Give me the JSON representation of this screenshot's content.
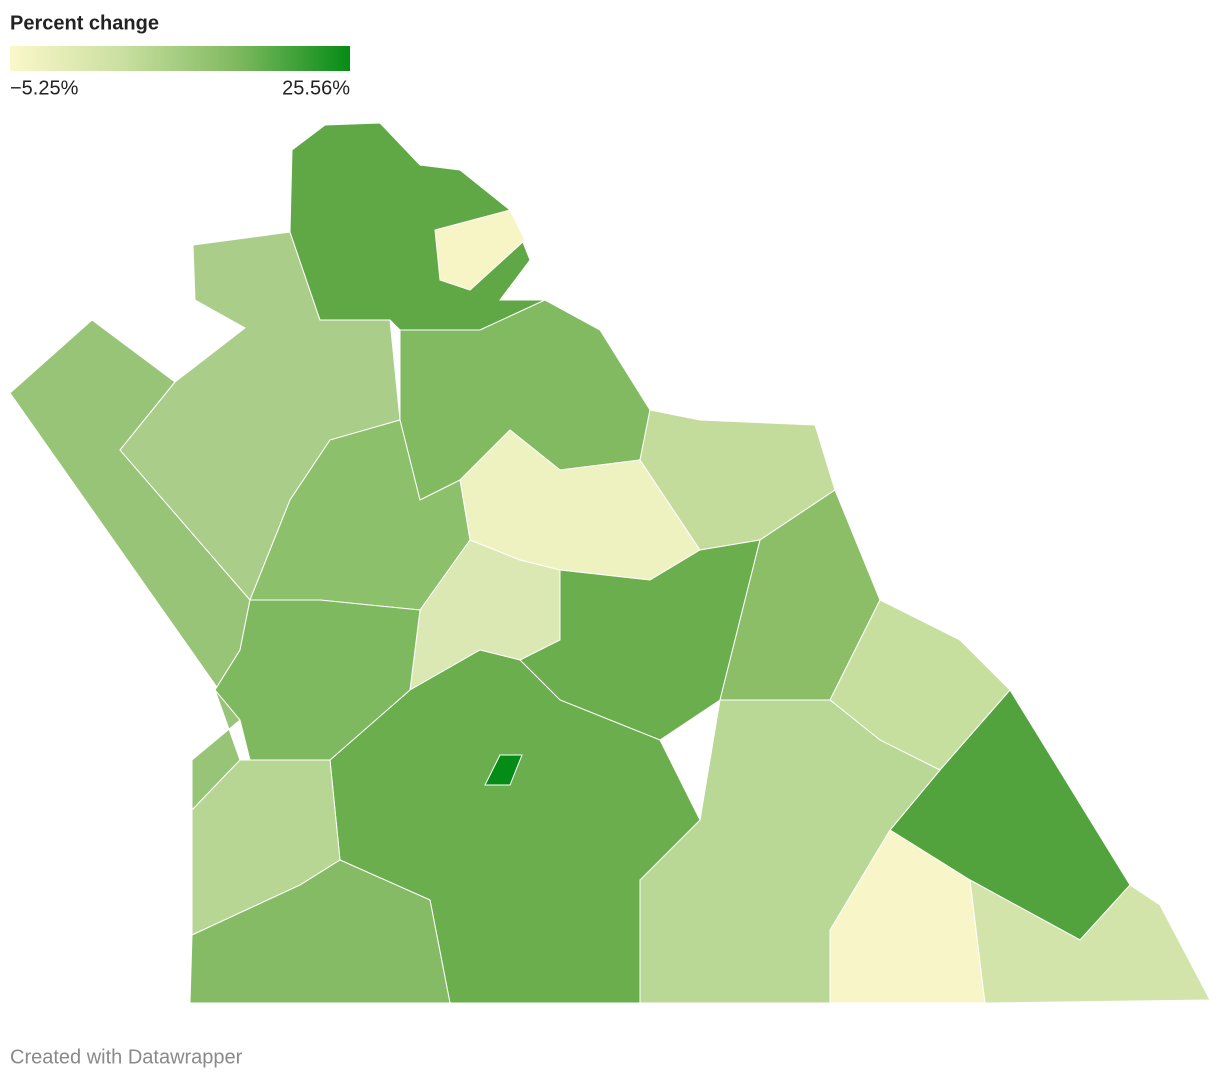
{
  "legend": {
    "title": "Percent change",
    "min": {
      "value": -5.25,
      "label": "−5.25%"
    },
    "max": {
      "value": 25.56,
      "label": "25.56%"
    },
    "colors": [
      "#fbf8c9",
      "#c9dfa0",
      "#7fb95f",
      "#058c17"
    ]
  },
  "footer": "Created with Datawrapper"
}
